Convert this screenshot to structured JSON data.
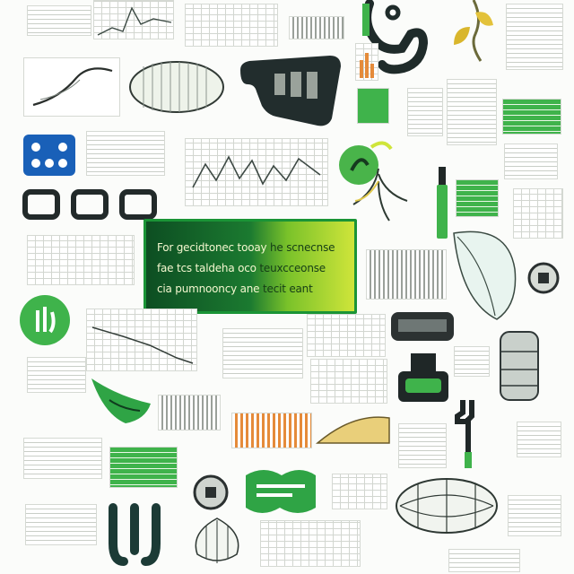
{
  "panel": {
    "line1_left": "For gecidtonec tooay",
    "line1_right": "he scnecnse",
    "line2_left": "fae tcs taldeha oco",
    "line2_right": "teuxcceonse",
    "line3_left": "cia pumnooncy ane",
    "line3_right": "tecit eant"
  },
  "colors": {
    "accent_green": "#3fb34b",
    "dark_green": "#0d4e22",
    "lime": "#cfe53a",
    "ink": "#1f2b2a",
    "orange": "#e58b3a"
  }
}
